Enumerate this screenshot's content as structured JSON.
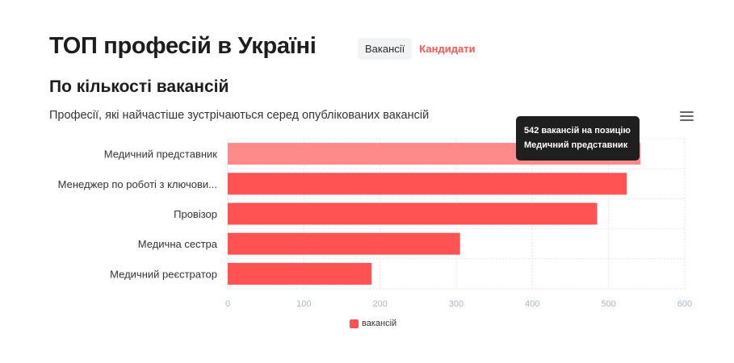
{
  "header": {
    "title": "ТОП професій в Україні",
    "tabs": [
      {
        "label": "Вакансії",
        "active": true
      },
      {
        "label": "Кандидати",
        "active": false
      }
    ]
  },
  "section": {
    "title": "По кількості вакансій"
  },
  "chart_data": {
    "type": "bar",
    "orientation": "horizontal",
    "title": "",
    "subtitle": "Професії, які найчастіше зустрічаються серед опублікованих вакансій",
    "categories": [
      "Медичний представник",
      "Менеджер по роботі з ключови...",
      "Провізор",
      "Медична сестра",
      "Медичний реєстратор"
    ],
    "series": [
      {
        "name": "вакансій",
        "values": [
          542,
          524,
          485,
          305,
          189
        ],
        "color": "#ff5252"
      }
    ],
    "xlabel": "",
    "ylabel": "",
    "xlim": [
      0,
      600
    ],
    "ticks": [
      0,
      100,
      200,
      300,
      400,
      500,
      600
    ],
    "grid": true,
    "legend_position": "bottom-center",
    "highlight_index": 0,
    "highlight_color": "#ff8a8a",
    "tooltip": {
      "line1": "542 вакансій на позицію",
      "line2": "Медичний представник"
    }
  },
  "colors": {
    "accent": "#ff5252",
    "axis_label": "#a9b6c8",
    "grid": "#e6e6e6"
  },
  "icons": {
    "menu": "hamburger-menu-icon"
  }
}
